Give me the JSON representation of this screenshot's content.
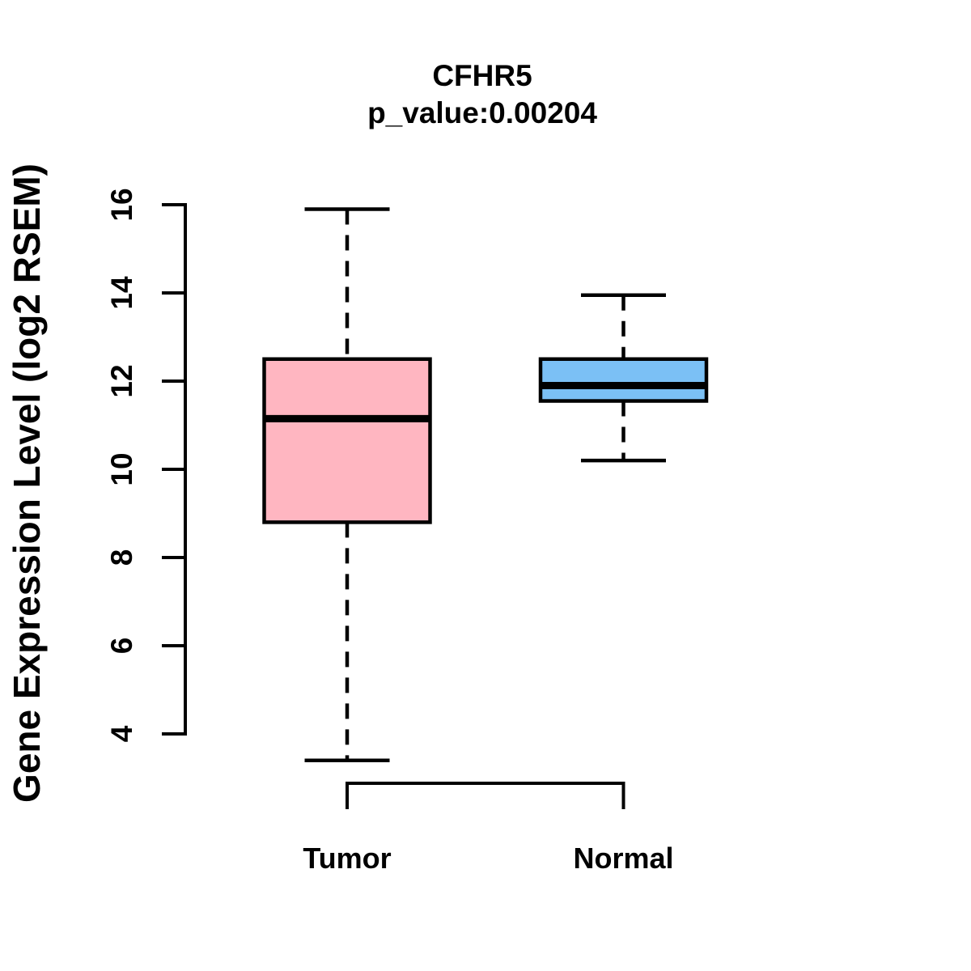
{
  "chart_data": {
    "type": "boxplot",
    "title": "CFHR5",
    "subtitle": "p_value:0.00204",
    "ylabel": "Gene Expression Level (log2 RSEM)",
    "xlabel": "",
    "categories": [
      "Tumor",
      "Normal"
    ],
    "yticks": [
      4,
      6,
      8,
      10,
      12,
      14,
      16
    ],
    "ylim": [
      4,
      16
    ],
    "grid": false,
    "legend": "none",
    "series": [
      {
        "name": "Tumor",
        "fill_color": "#FFB6C1",
        "whisker_low": 3.4,
        "q1": 8.8,
        "median": 11.15,
        "q3": 12.5,
        "whisker_high": 15.9,
        "whisker_style": "dashed"
      },
      {
        "name": "Normal",
        "fill_color": "#7BC0F5",
        "whisker_low": 10.2,
        "q1": 11.55,
        "median": 11.9,
        "q3": 12.5,
        "whisker_high": 13.95,
        "whisker_style": "dashed"
      }
    ],
    "stroke_color": "#000000",
    "background_color": "#FFFFFF"
  }
}
